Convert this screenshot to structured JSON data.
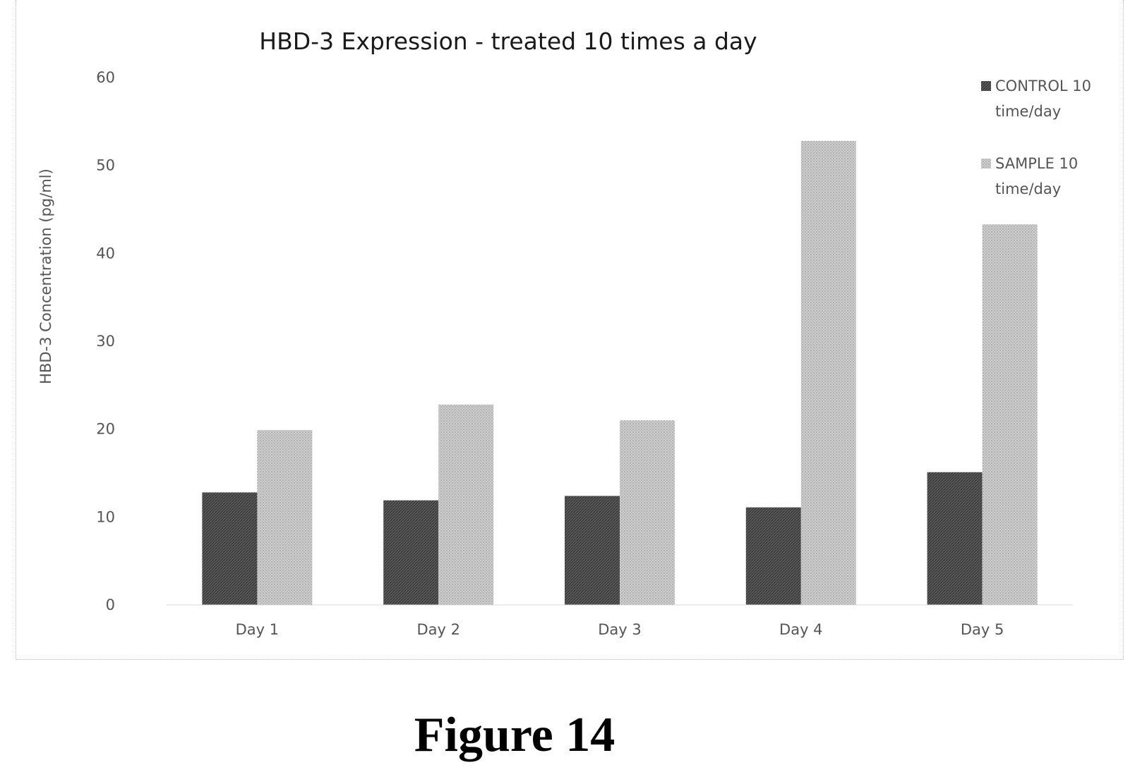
{
  "chart_data": {
    "type": "bar",
    "title": "HBD-3 Expression - treated 10 times a day",
    "xlabel": "",
    "ylabel": "HBD-3 Concentration (pg/ml)",
    "ylim": [
      0,
      60
    ],
    "yticks": [
      "0",
      "10",
      "20",
      "30",
      "40",
      "50",
      "60"
    ],
    "categories": [
      "Day 1",
      "Day 2",
      "Day 3",
      "Day 4",
      "Day 5"
    ],
    "series": [
      {
        "name": "CONTROL 10 time/day",
        "legend_lines": [
          "CONTROL 10",
          "time/day"
        ],
        "values": [
          12.8,
          11.9,
          12.4,
          11.1,
          15.1
        ],
        "color": "#555555"
      },
      {
        "name": "SAMPLE 10 time/day",
        "legend_lines": [
          "SAMPLE 10",
          "time/day"
        ],
        "values": [
          19.9,
          22.8,
          21.0,
          52.8,
          43.3
        ],
        "color": "#c4c4c4"
      }
    ],
    "grid": false,
    "legend_position": "top-right"
  },
  "figure": {
    "caption": "Figure 14"
  }
}
